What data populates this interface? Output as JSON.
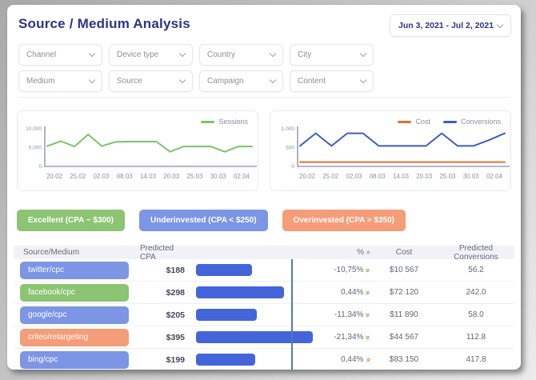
{
  "page": {
    "title": "Source / Medium Analysis",
    "date_range": "Jun 3, 2021 - Jul 2, 2021"
  },
  "filters": [
    "Channel",
    "Device type",
    "Country",
    "City",
    "Medium",
    "Source",
    "Campaign",
    "Content"
  ],
  "colors": {
    "accent_navy": "#2e3487",
    "pill_blue": "#7d95e5",
    "pill_green": "#8cc474",
    "pill_orange": "#f59d78",
    "bar_blue": "#4465d9",
    "benchmark_line": "#5577b5",
    "trend_green": "#6cbf3f",
    "trend_orange": "#ee7733",
    "sessions_green": "#7cc367",
    "cost_orange": "#e8702e",
    "conversions_blue": "#3d5cc4"
  },
  "chart_data": [
    {
      "type": "line",
      "x_ticks": [
        "20.02",
        "25.02",
        "02.03",
        "08.03",
        "14.03",
        "20.03",
        "25.03",
        "30.03",
        "02.04"
      ],
      "y_ticks": [
        0,
        5000,
        10000
      ],
      "y_tick_labels": [
        "0",
        "5,000",
        "10,000"
      ],
      "ylim": [
        0,
        10000
      ],
      "grid": false,
      "legend_position": "top-right",
      "series": [
        {
          "name": "Sessions",
          "color_key": "sessions_green",
          "values": [
            5400,
            6700,
            5300,
            8500,
            5400,
            6500,
            6600,
            6600,
            6600,
            3900,
            5300,
            5300,
            5300,
            3900,
            5300,
            5300
          ]
        }
      ]
    },
    {
      "type": "line",
      "x_ticks": [
        "20.02",
        "25.02",
        "02.03",
        "08.03",
        "14.03",
        "20.03",
        "25.03",
        "30.03",
        "02.04"
      ],
      "y_ticks": [
        0,
        500,
        1000
      ],
      "y_tick_labels": [
        "0",
        "500",
        "1,000"
      ],
      "ylim": [
        0,
        1000
      ],
      "grid": false,
      "legend_position": "top-right",
      "series": [
        {
          "name": "Cost",
          "color_key": "cost_orange",
          "values": [
            115,
            115,
            115,
            115,
            115,
            115,
            115,
            115,
            115,
            115,
            115,
            115,
            115,
            115
          ]
        },
        {
          "name": "Conversions",
          "color_key": "conversions_blue",
          "values": [
            545,
            880,
            545,
            880,
            880,
            545,
            545,
            545,
            545,
            880,
            545,
            545,
            700,
            880
          ]
        }
      ]
    }
  ],
  "legend_badges": [
    {
      "label": "Excellent (CPA ~ $300)"
    },
    {
      "label": "Underinvested (CPA < $250)"
    },
    {
      "label": "Overinvested (CPA > $350)"
    }
  ],
  "table": {
    "headers": [
      "Source/Medium",
      "Predicted CPA",
      "%",
      "Cost",
      "Predicted Conversions"
    ],
    "cpa_benchmark": 300,
    "rows": [
      {
        "source": "twitter/cpc",
        "status": "underinvested",
        "cpa_label": "$188",
        "cpa_value": 188,
        "pct_change": "-10,75%",
        "trend": "down",
        "cost": "$10 567",
        "predicted_conversions": "56.2"
      },
      {
        "source": "facebook/cpc",
        "status": "excellent",
        "cpa_label": "$298",
        "cpa_value": 298,
        "pct_change": "0,44%",
        "trend": "down",
        "cost": "$72 120",
        "predicted_conversions": "242.0"
      },
      {
        "source": "google/cpc",
        "status": "underinvested",
        "cpa_label": "$205",
        "cpa_value": 205,
        "pct_change": "-11,34%",
        "trend": "down",
        "cost": "$11 890",
        "predicted_conversions": "58.0"
      },
      {
        "source": "criteo/retargeting",
        "status": "overinvested",
        "cpa_label": "$395",
        "cpa_value": 395,
        "pct_change": "-21,34%",
        "trend": "down",
        "cost": "$44 567",
        "predicted_conversions": "112.8"
      },
      {
        "source": "bing/cpc",
        "status": "underinvested",
        "cpa_label": "$199",
        "cpa_value": 199,
        "pct_change": "0,44%",
        "trend": "up",
        "cost": "$83 150",
        "predicted_conversions": "417.8"
      }
    ]
  }
}
